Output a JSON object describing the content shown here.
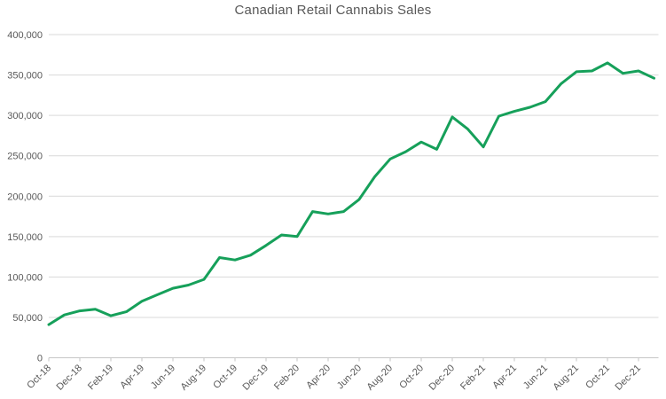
{
  "chart_data": {
    "type": "line",
    "title": "Canadian Retail Cannabis Sales",
    "xlabel": "",
    "ylabel": "",
    "ylim": [
      0,
      400000
    ],
    "ytick_step": 50000,
    "ytick_labels": [
      "0",
      "50,000",
      "100,000",
      "150,000",
      "200,000",
      "250,000",
      "300,000",
      "350,000",
      "400,000"
    ],
    "xtick_labels": [
      "Oct-18",
      "Dec-18",
      "Feb-19",
      "Apr-19",
      "Jun-19",
      "Aug-19",
      "Oct-19",
      "Dec-19",
      "Feb-20",
      "Apr-20",
      "Jun-20",
      "Aug-20",
      "Oct-20",
      "Dec-20",
      "Feb-21",
      "Apr-21",
      "Jun-21",
      "Aug-21",
      "Oct-21",
      "Dec-21"
    ],
    "xtick_every": 2,
    "grid": "horizontal-only",
    "legend": "none",
    "line_color": "#16a05a",
    "grid_color": "#d9d9d9",
    "axis_color": "#c6c6c6",
    "label_color": "#595959",
    "x": [
      "Oct-18",
      "Nov-18",
      "Dec-18",
      "Jan-19",
      "Feb-19",
      "Mar-19",
      "Apr-19",
      "May-19",
      "Jun-19",
      "Jul-19",
      "Aug-19",
      "Sep-19",
      "Oct-19",
      "Nov-19",
      "Dec-19",
      "Jan-20",
      "Feb-20",
      "Mar-20",
      "Apr-20",
      "May-20",
      "Jun-20",
      "Jul-20",
      "Aug-20",
      "Sep-20",
      "Oct-20",
      "Nov-20",
      "Dec-20",
      "Jan-21",
      "Feb-21",
      "Mar-21",
      "Apr-21",
      "May-21",
      "Jun-21",
      "Jul-21",
      "Aug-21",
      "Sep-21",
      "Oct-21",
      "Nov-21",
      "Dec-21",
      "Jan-22"
    ],
    "values": [
      41000,
      53000,
      58000,
      60000,
      52000,
      57000,
      70000,
      78000,
      86000,
      90000,
      97000,
      124000,
      121000,
      127000,
      139000,
      152000,
      150000,
      181000,
      178000,
      181000,
      196000,
      224000,
      246000,
      255000,
      267000,
      258000,
      298000,
      283000,
      261000,
      299000,
      305000,
      310000,
      317000,
      339000,
      354000,
      355000,
      365000,
      352000,
      355000,
      346000
    ]
  }
}
